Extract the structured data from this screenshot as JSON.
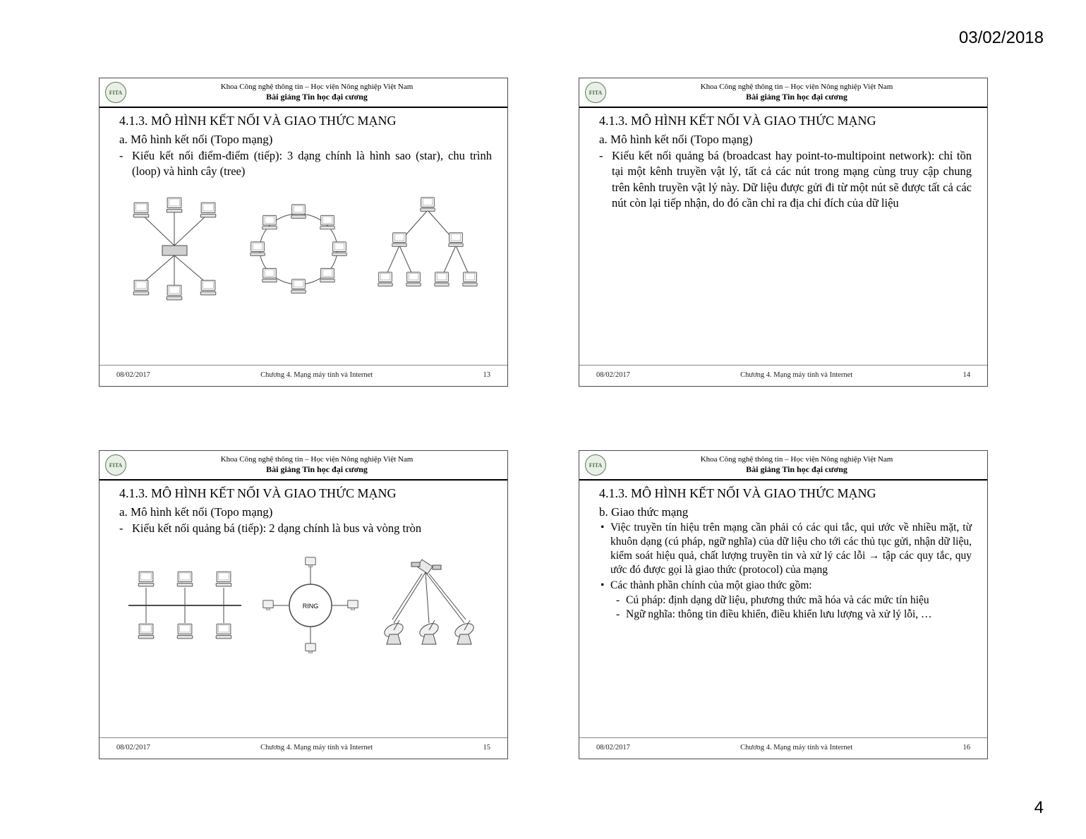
{
  "page": {
    "date": "03/02/2018",
    "number": "4"
  },
  "common": {
    "header_top": "Khoa Công nghệ thông tin – Học viện Nông nghiệp Việt Nam",
    "header_bottom": "Bài giảng Tin học đại cương",
    "logo_text": "FITA",
    "footer_date": "08/02/2017",
    "footer_center": "Chương 4. Mạng máy tính và Internet",
    "slide_title": "4.1.3. MÔ HÌNH KẾT NỐI VÀ GIAO THỨC MẠNG"
  },
  "slides": [
    {
      "subtitle": "a.  Mô hình kết nối (Topo mạng)",
      "body": "Kiểu kết nối điểm-điểm (tiếp): 3 dạng chính là hình sao (star), chu trình (loop) và hình cây (tree)",
      "page_no": "13",
      "has_diagram": "star-loop-tree"
    },
    {
      "subtitle": "a. Mô hình kết nối (Topo mạng)",
      "body": "Kiểu kết nối quảng bá (broadcast hay point-to-multipoint network): chỉ tồn tại một kênh truyền vật lý, tất cả các nút trong mạng cùng truy cập chung trên kênh truyền vật lý này. Dữ liệu được gửi đi từ một nút sẽ được tất cả các nút còn lại tiếp nhận, do đó cần chỉ ra địa chỉ đích của dữ liệu",
      "page_no": "14"
    },
    {
      "subtitle": "a. Mô hình kết nối (Topo mạng)",
      "body": "Kiểu kết nối quảng bá (tiếp): 2 dạng chính là bus và vòng tròn",
      "page_no": "15",
      "has_diagram": "bus-ring-sat"
    },
    {
      "subtitle": "b. Giao thức mạng",
      "bullets": [
        "Việc truyền tín hiệu trên mạng cần phải có các qui tắc, qui ước về nhiều mặt, từ khuôn dạng (cú pháp, ngữ nghĩa) của dữ liệu cho tới các thủ tục gửi, nhận dữ liệu, kiểm soát hiệu quả, chất lượng truyền tin và xử lý các lỗi → tập các quy tắc, quy ước đó được gọi là giao thức (protocol) của  mạng",
        "Các thành phần chính của một giao thức gồm:"
      ],
      "subitems": [
        "Cú pháp: định dạng dữ liệu, phương thức mã hóa và các mức tín hiệu",
        "Ngữ nghĩa: thông tin điều khiển, điều khiển lưu lượng và xử lý lỗi, …"
      ],
      "page_no": "16"
    }
  ],
  "diagrams": {
    "ring_label": "RING",
    "colors": {
      "stroke": "#4a4a4a",
      "fill": "#d8d8d8",
      "screen": "#f5f5f5"
    }
  }
}
